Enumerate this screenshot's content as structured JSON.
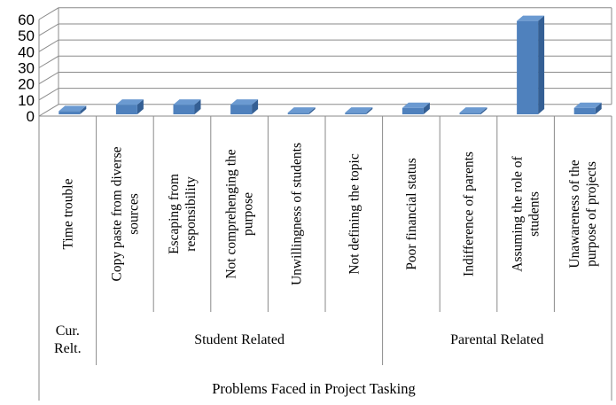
{
  "chart_data": {
    "type": "bar",
    "title": "",
    "xlabel": "Problems Faced in Project Tasking",
    "ylabel": "",
    "ylim": [
      0,
      60
    ],
    "yticks": [
      0,
      10,
      20,
      30,
      40,
      50,
      60
    ],
    "grid": true,
    "categories": [
      "Time trouble",
      "Copy paste from diverse sources",
      "Escaping from responsibility",
      "Not comprehenging the purpose",
      "Unwillingness of students",
      "Not defining the topic",
      "Poor financial status",
      "Indifference of parents",
      "Assuming the role of students",
      "Unawareness of the purpose of projects"
    ],
    "category_lines": [
      [
        "Time trouble"
      ],
      [
        "Copy paste from diverse",
        "sources"
      ],
      [
        "Escaping from",
        "responsibility"
      ],
      [
        "Not comprehenging the",
        "purpose"
      ],
      [
        "Unwillingness of students"
      ],
      [
        "Not defining the topic"
      ],
      [
        "Poor financial status"
      ],
      [
        "Indifference of parents"
      ],
      [
        "Assuming the role of",
        "students"
      ],
      [
        "Unawareness of the",
        "purpose of projects"
      ]
    ],
    "values": [
      2,
      6,
      6,
      6,
      1,
      1,
      4,
      1,
      58,
      4
    ],
    "groups": [
      {
        "lines": [
          "Cur.",
          "Relt."
        ],
        "span": [
          0,
          0
        ]
      },
      {
        "lines": [
          "Student Related"
        ],
        "span": [
          1,
          5
        ]
      },
      {
        "lines": [
          "Parental Related"
        ],
        "span": [
          6,
          9
        ]
      }
    ],
    "colors": {
      "bar_front": "#4f81bd",
      "bar_top": "#6b9ad1",
      "bar_side": "#345f94"
    }
  }
}
